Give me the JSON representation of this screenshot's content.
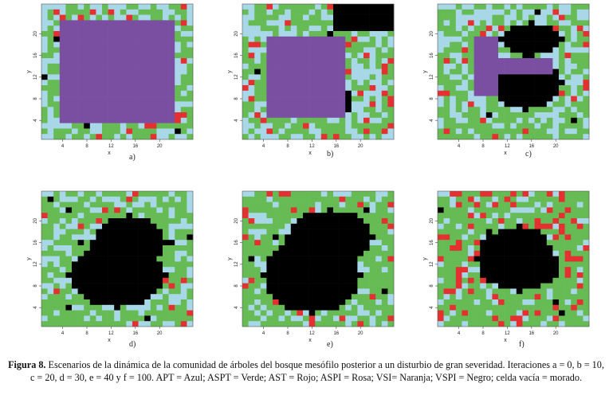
{
  "figure": {
    "caption_label": "Figura 8.",
    "caption_text": "Escenarios de la dinámica de la comunidad de árboles del bosque mesófilo posterior a un disturbio de gran severidad. Iteraciones a = 0, b = 10, c = 20, d = 30, e = 40 y f = 100. APT = Azul; ASPT = Verde; AST = Rojo; ASPI = Rosa; VSI= Naranja; VSPI = Negro; celda vacía = morado."
  },
  "colors": {
    "green": "#66bb55",
    "lightblue": "#a8d8e8",
    "red": "#e43030",
    "black": "#000000",
    "purple": "#7a4ea0",
    "bluegray": "#8faab8"
  },
  "axis": {
    "xlabel": "x",
    "ylabel": "y",
    "xticks": [
      "4",
      "8",
      "12",
      "16",
      "20"
    ],
    "yticks": [
      "4",
      "8",
      "12",
      "16",
      "20"
    ]
  },
  "panels": [
    {
      "label": "a)"
    },
    {
      "label": "b)"
    },
    {
      "label": "c)"
    },
    {
      "label": "d)"
    },
    {
      "label": "e)"
    },
    {
      "label": "f)"
    }
  ]
}
